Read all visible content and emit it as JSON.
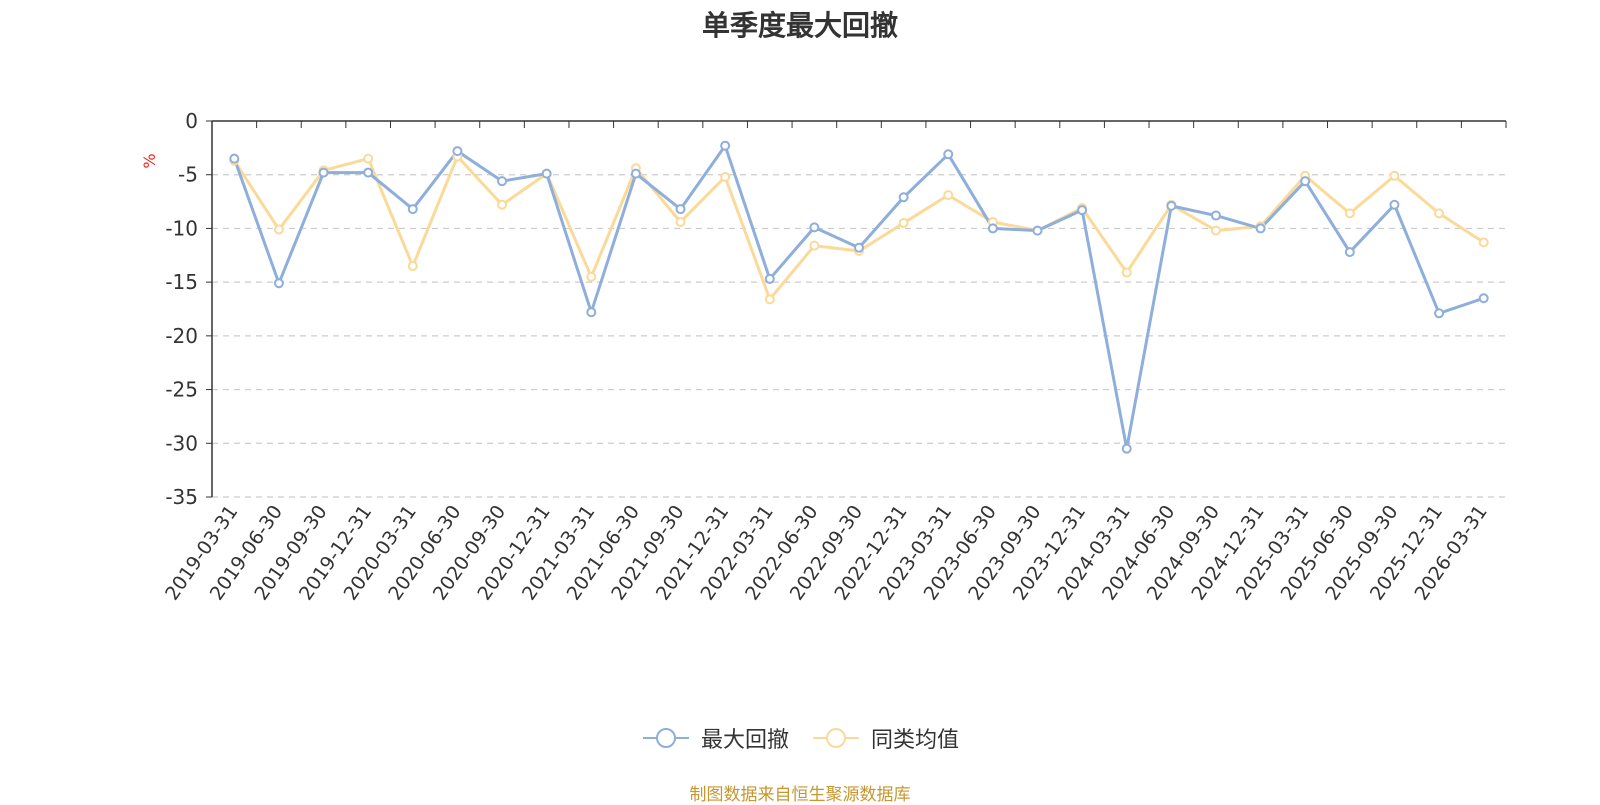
{
  "chart_data": {
    "type": "line",
    "title": "单季度最大回撤",
    "ylabel": "%",
    "ylim": [
      -35,
      0
    ],
    "yticks": [
      0,
      -5,
      -10,
      -15,
      -20,
      -25,
      -30,
      -35
    ],
    "grid": true,
    "legend_position": "bottom",
    "x": [
      "2019-03-31",
      "2019-06-30",
      "2019-09-30",
      "2019-12-31",
      "2020-03-31",
      "2020-06-30",
      "2020-09-30",
      "2020-12-31",
      "2021-03-31",
      "2021-06-30",
      "2021-09-30",
      "2021-12-31",
      "2022-03-31",
      "2022-06-30",
      "2022-09-30",
      "2022-12-31",
      "2023-03-31",
      "2023-06-30",
      "2023-09-30",
      "2023-12-31",
      "2024-03-31",
      "2024-06-30",
      "2024-09-30",
      "2024-12-31",
      "2025-03-31",
      "2025-06-30",
      "2025-09-30",
      "2025-12-31",
      "2026-03-31"
    ],
    "series": [
      {
        "name": "最大回撤",
        "color": "#8eaedb",
        "values": [
          -3.5,
          -15.1,
          -4.8,
          -4.8,
          -8.2,
          -2.8,
          -5.6,
          -4.9,
          -17.8,
          -4.9,
          -8.2,
          -2.3,
          -14.7,
          -9.9,
          -11.8,
          -7.1,
          -3.1,
          -10.0,
          -10.2,
          -8.3,
          -30.5,
          -7.9,
          -8.8,
          -10.0,
          -5.6,
          -12.2,
          -7.8,
          -17.9,
          -16.5
        ]
      },
      {
        "name": "同类均值",
        "color": "#fbd999",
        "values": [
          -3.7,
          -10.1,
          -4.6,
          -3.5,
          -13.5,
          -3.3,
          -7.8,
          -4.9,
          -14.5,
          -4.4,
          -9.4,
          -5.2,
          -16.6,
          -11.6,
          -12.1,
          -9.5,
          -6.9,
          -9.4,
          -10.2,
          -8.1,
          -14.1,
          -7.8,
          -10.2,
          -9.8,
          -5.1,
          -8.6,
          -5.1,
          -8.6,
          -11.3
        ]
      }
    ]
  },
  "source": "制图数据来自恒生聚源数据库"
}
